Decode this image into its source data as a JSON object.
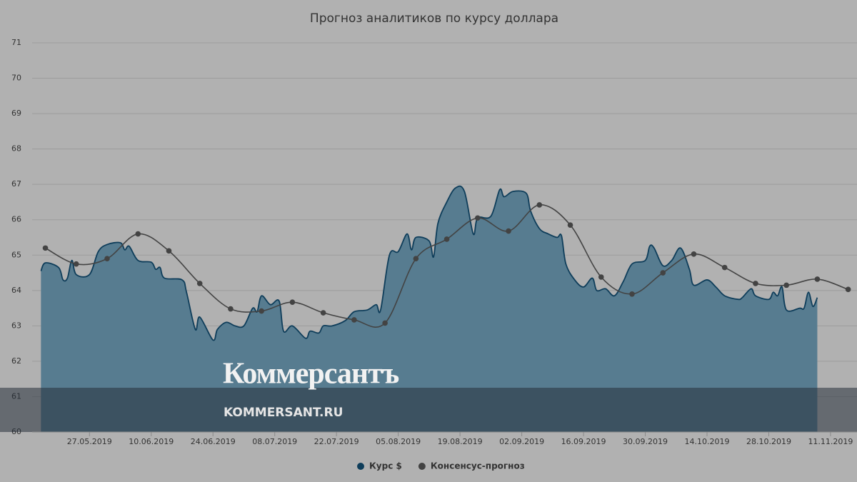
{
  "chart_data": {
    "type": "area-line",
    "title": "Прогноз аналитиков по курсу доллара",
    "watermark": {
      "brand": "Коммерсантъ",
      "site": "KOMMERSANT.RU"
    },
    "grid": true,
    "legend": "bottom",
    "ylim": [
      60,
      71
    ],
    "yticks": [
      60,
      61,
      62,
      63,
      64,
      65,
      66,
      67,
      68,
      69,
      70,
      71
    ],
    "xlim": [
      "14.05.2019",
      "17.11.2019"
    ],
    "xticks": [
      "27.05.2019",
      "10.06.2019",
      "24.06.2019",
      "08.07.2019",
      "22.07.2019",
      "05.08.2019",
      "19.08.2019",
      "02.09.2019",
      "16.09.2019",
      "30.09.2019",
      "14.10.2019",
      "28.10.2019",
      "11.11.2019"
    ],
    "series": [
      {
        "name": "Курс $",
        "kind": "area",
        "color": "#0e3d5a",
        "fill": "#577c90",
        "x": [
          "16.05.2019",
          "17.05.2019",
          "20.05.2019",
          "21.05.2019",
          "22.05.2019",
          "23.05.2019",
          "24.05.2019",
          "27.05.2019",
          "29.05.2019",
          "31.05.2019",
          "03.06.2019",
          "04.06.2019",
          "05.06.2019",
          "07.06.2019",
          "10.06.2019",
          "11.06.2019",
          "12.06.2019",
          "13.06.2019",
          "17.06.2019",
          "18.06.2019",
          "20.06.2019",
          "21.06.2019",
          "24.06.2019",
          "25.06.2019",
          "27.06.2019",
          "29.06.2019",
          "01.07.2019",
          "03.07.2019",
          "04.07.2019",
          "05.07.2019",
          "07.07.2019",
          "09.07.2019",
          "10.07.2019",
          "12.07.2019",
          "15.07.2019",
          "16.07.2019",
          "18.07.2019",
          "19.07.2019",
          "21.07.2019",
          "24.07.2019",
          "26.07.2019",
          "29.07.2019",
          "31.07.2019",
          "01.08.2019",
          "03.08.2019",
          "05.08.2019",
          "07.08.2019",
          "08.08.2019",
          "09.08.2019",
          "12.08.2019",
          "13.08.2019",
          "14.08.2019",
          "16.08.2019",
          "18.08.2019",
          "20.08.2019",
          "22.08.2019",
          "23.08.2019",
          "26.08.2019",
          "28.08.2019",
          "29.08.2019",
          "31.08.2019",
          "03.09.2019",
          "04.09.2019",
          "06.09.2019",
          "08.09.2019",
          "10.09.2019",
          "11.09.2019",
          "12.09.2019",
          "14.09.2019",
          "16.09.2019",
          "18.09.2019",
          "19.09.2019",
          "21.09.2019",
          "23.09.2019",
          "25.09.2019",
          "27.09.2019",
          "30.09.2019",
          "01.10.2019",
          "02.10.2019",
          "04.10.2019",
          "06.10.2019",
          "08.10.2019",
          "10.10.2019",
          "11.10.2019",
          "14.10.2019",
          "16.10.2019",
          "18.10.2019",
          "21.10.2019",
          "22.10.2019",
          "24.10.2019",
          "25.10.2019",
          "28.10.2019",
          "29.10.2019",
          "30.10.2019",
          "31.10.2019",
          "01.11.2019",
          "04.11.2019",
          "05.11.2019",
          "06.11.2019",
          "07.11.2019",
          "08.11.2019"
        ],
        "values": [
          64.55,
          64.78,
          64.65,
          64.3,
          64.35,
          64.85,
          64.45,
          64.45,
          65.1,
          65.3,
          65.35,
          65.15,
          65.25,
          64.85,
          64.8,
          64.6,
          64.65,
          64.35,
          64.3,
          63.95,
          62.9,
          63.25,
          62.6,
          62.9,
          63.1,
          63.0,
          63.0,
          63.5,
          63.4,
          63.85,
          63.6,
          63.7,
          62.85,
          63.0,
          62.65,
          62.85,
          62.8,
          63.0,
          63.0,
          63.15,
          63.4,
          63.45,
          63.6,
          63.45,
          65.0,
          65.1,
          65.6,
          65.15,
          65.5,
          65.4,
          64.95,
          65.9,
          66.5,
          66.9,
          66.8,
          65.6,
          66.05,
          66.1,
          66.85,
          66.65,
          66.8,
          66.75,
          66.25,
          65.75,
          65.6,
          65.5,
          65.55,
          64.75,
          64.3,
          64.1,
          64.35,
          64.0,
          64.05,
          63.85,
          64.25,
          64.75,
          64.85,
          65.25,
          65.2,
          64.7,
          64.85,
          65.2,
          64.6,
          64.15,
          64.3,
          64.1,
          63.85,
          63.75,
          63.8,
          64.05,
          63.85,
          63.75,
          63.95,
          63.85,
          64.1,
          63.45,
          63.5,
          63.5,
          63.95,
          63.55,
          63.8
        ]
      },
      {
        "name": "Консенсус-прогноз",
        "kind": "line",
        "color": "#434343",
        "x": [
          "17.05.2019",
          "24.05.2019",
          "31.05.2019",
          "07.06.2019",
          "14.06.2019",
          "21.06.2019",
          "28.06.2019",
          "05.07.2019",
          "12.07.2019",
          "19.07.2019",
          "26.07.2019",
          "02.08.2019",
          "09.08.2019",
          "16.08.2019",
          "23.08.2019",
          "30.08.2019",
          "06.09.2019",
          "13.09.2019",
          "20.09.2019",
          "27.09.2019",
          "04.10.2019",
          "11.10.2019",
          "18.10.2019",
          "25.10.2019",
          "01.11.2019",
          "08.11.2019",
          "15.11.2019"
        ],
        "values": [
          65.2,
          64.75,
          64.9,
          65.6,
          65.12,
          64.2,
          63.48,
          63.42,
          63.67,
          63.37,
          63.17,
          63.08,
          64.9,
          65.45,
          66.05,
          65.68,
          66.42,
          65.85,
          64.38,
          63.9,
          64.5,
          65.03,
          64.65,
          64.2,
          64.15,
          64.32,
          64.03
        ]
      }
    ]
  }
}
